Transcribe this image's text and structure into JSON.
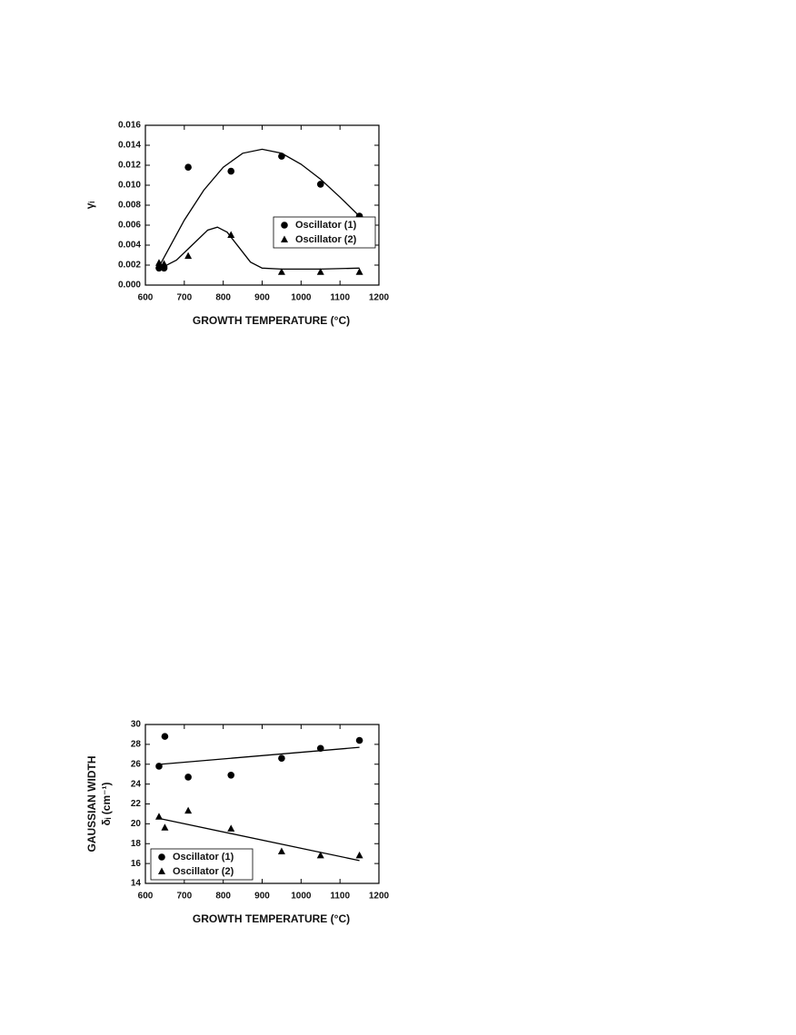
{
  "chart_data": [
    {
      "type": "scatter",
      "x_label": "GROWTH TEMPERATURE (°C)",
      "y_label": [
        "γᵢ"
      ],
      "xlim": [
        600,
        1200
      ],
      "xticks": [
        600,
        700,
        800,
        900,
        1000,
        1100,
        1200
      ],
      "ylim": [
        0,
        0.016
      ],
      "yticks": [
        {
          "value": 0,
          "label": "0.000"
        },
        0.002,
        0.004,
        0.006,
        0.008,
        {
          "value": 0.01,
          "label": "0.010"
        },
        0.012,
        0.014,
        0.016
      ],
      "legend": "center right",
      "series": [
        {
          "name": "Oscillator (1)",
          "color": "#000000",
          "marker": "circle",
          "x": [
            635,
            648,
            710,
            820,
            950,
            1050,
            1150
          ],
          "values": [
            0.0017,
            0.0017,
            0.0118,
            0.0114,
            0.0129,
            0.0101,
            0.0069
          ],
          "fit": {
            "x": [
              640,
              700,
              750,
              800,
              850,
              900,
              950,
              1000,
              1050,
              1100,
              1150
            ],
            "values": [
              0.0022,
              0.0065,
              0.0095,
              0.0118,
              0.0132,
              0.0136,
              0.0132,
              0.0121,
              0.0106,
              0.0088,
              0.0069
            ]
          }
        },
        {
          "name": "Oscillator (2)",
          "color": "#000000",
          "marker": "triangle",
          "x": [
            635,
            648,
            710,
            820,
            950,
            1050,
            1150
          ],
          "values": [
            0.0022,
            0.0021,
            0.0029,
            0.005,
            0.0013,
            0.0013,
            0.0013
          ],
          "fit": {
            "x": [
              640,
              680,
              720,
              760,
              785,
              810,
              840,
              870,
              900,
              950,
              1000,
              1050,
              1150
            ],
            "values": [
              0.0017,
              0.0025,
              0.004,
              0.0055,
              0.0058,
              0.0053,
              0.0038,
              0.0023,
              0.0017,
              0.0016,
              0.0016,
              0.0016,
              0.0017
            ]
          }
        }
      ]
    },
    {
      "type": "scatter",
      "x_label": "GROWTH TEMPERATURE (°C)",
      "y_label": [
        "GAUSSIAN WIDTH",
        "δᵢ (cm⁻¹)"
      ],
      "xlim": [
        600,
        1200
      ],
      "xticks": [
        600,
        700,
        800,
        900,
        1000,
        1100,
        1200
      ],
      "ylim": [
        14,
        30
      ],
      "yticks": [
        14,
        16,
        18,
        20,
        22,
        24,
        26,
        28,
        30
      ],
      "legend": "lower left",
      "series": [
        {
          "name": "Oscillator (1)",
          "color": "#000000",
          "marker": "circle",
          "x": [
            635,
            650,
            710,
            820,
            950,
            1050,
            1150
          ],
          "values": [
            25.8,
            28.8,
            24.7,
            24.9,
            26.6,
            27.6,
            28.4
          ],
          "fit": {
            "x": [
              640,
              1150
            ],
            "values": [
              26.0,
              27.7
            ]
          }
        },
        {
          "name": "Oscillator (2)",
          "color": "#000000",
          "marker": "triangle",
          "x": [
            635,
            650,
            710,
            820,
            950,
            1050,
            1150
          ],
          "values": [
            20.7,
            19.6,
            21.3,
            19.5,
            17.2,
            16.8,
            16.8
          ],
          "fit": {
            "x": [
              640,
              1150
            ],
            "values": [
              20.5,
              16.3
            ]
          }
        }
      ]
    }
  ]
}
